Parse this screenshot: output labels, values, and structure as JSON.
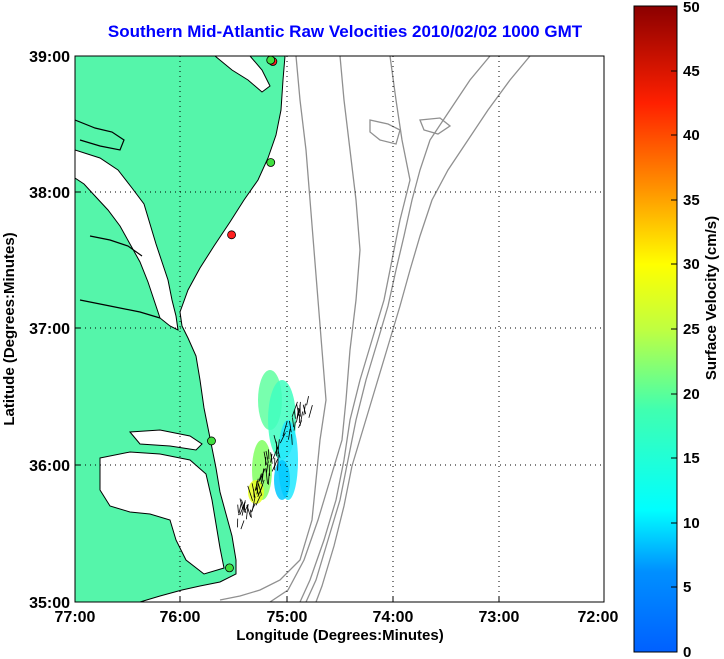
{
  "title": "Southern Mid-Atlantic Raw Velocities 2010/02/02 1000 GMT",
  "map": {
    "xlabel": "Longitude (Degrees:Minutes)",
    "ylabel": "Latitude (Degrees:Minutes)",
    "lon_range": [
      -77,
      -72
    ],
    "lat_range": [
      35,
      39
    ],
    "x_ticks": [
      "77:00",
      "76:00",
      "75:00",
      "74:00",
      "73:00",
      "72:00"
    ],
    "y_ticks": [
      "35:00",
      "36:00",
      "37:00",
      "38:00",
      "39:00"
    ],
    "grid": "dotted",
    "land_color": "#55f5aa",
    "stations": [
      {
        "lon": -75.13,
        "lat": 38.96,
        "color": "#ff2020"
      },
      {
        "lon": -75.15,
        "lat": 38.97,
        "color": "#40e040"
      },
      {
        "lon": -75.15,
        "lat": 38.22,
        "color": "#40e040"
      },
      {
        "lon": -75.52,
        "lat": 37.69,
        "color": "#ff2020"
      },
      {
        "lon": -75.71,
        "lat": 36.18,
        "color": "#40e040"
      },
      {
        "lon": -75.54,
        "lat": 35.25,
        "color": "#40e040"
      }
    ]
  },
  "colorbar": {
    "label": "Surface Velocity (cm/s)",
    "min": 0,
    "max": 50,
    "ticks": [
      "0",
      "5",
      "10",
      "15",
      "20",
      "25",
      "30",
      "35",
      "40",
      "45",
      "50"
    ],
    "colormap": "jet"
  }
}
